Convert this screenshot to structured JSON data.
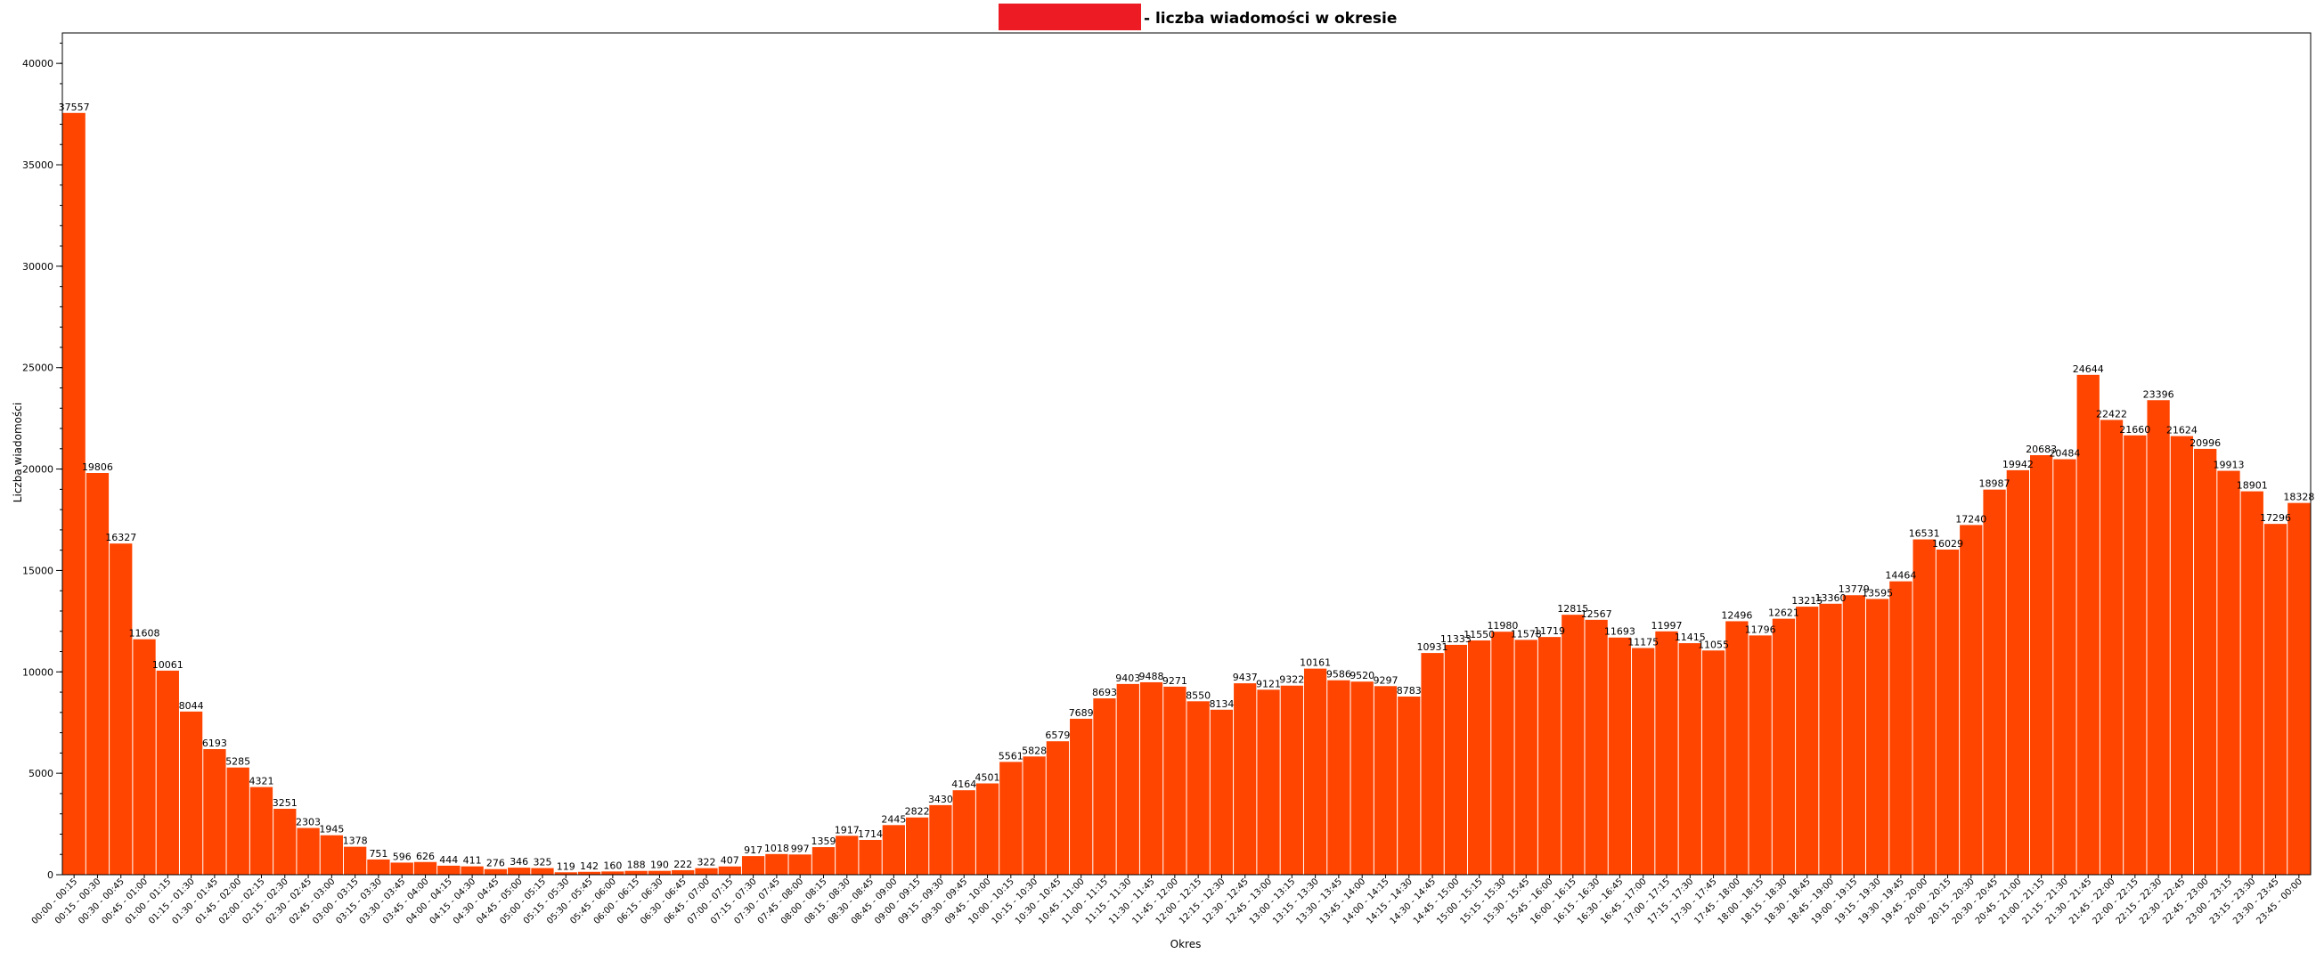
{
  "chart_data": {
    "type": "bar",
    "title": "- liczba wiadomości w okresie",
    "legend_swatch_color": "#ed1c24",
    "bar_color": "#ff4500",
    "xlabel": "Okres",
    "ylabel": "Liczba wiadomości",
    "ylim": [
      0,
      41500
    ],
    "yticks": [
      0,
      5000,
      10000,
      15000,
      20000,
      25000,
      30000,
      35000,
      40000
    ],
    "grid": false,
    "legend_placement": "top-center",
    "categories": [
      "00:00 - 00:15",
      "00:15 - 00:30",
      "00:30 - 00:45",
      "00:45 - 01:00",
      "01:00 - 01:15",
      "01:15 - 01:30",
      "01:30 - 01:45",
      "01:45 - 02:00",
      "02:00 - 02:15",
      "02:15 - 02:30",
      "02:30 - 02:45",
      "02:45 - 03:00",
      "03:00 - 03:15",
      "03:15 - 03:30",
      "03:30 - 03:45",
      "03:45 - 04:00",
      "04:00 - 04:15",
      "04:15 - 04:30",
      "04:30 - 04:45",
      "04:45 - 05:00",
      "05:00 - 05:15",
      "05:15 - 05:30",
      "05:30 - 05:45",
      "05:45 - 06:00",
      "06:00 - 06:15",
      "06:15 - 06:30",
      "06:30 - 06:45",
      "06:45 - 07:00",
      "07:00 - 07:15",
      "07:15 - 07:30",
      "07:30 - 07:45",
      "07:45 - 08:00",
      "08:00 - 08:15",
      "08:15 - 08:30",
      "08:30 - 08:45",
      "08:45 - 09:00",
      "09:00 - 09:15",
      "09:15 - 09:30",
      "09:30 - 09:45",
      "09:45 - 10:00",
      "10:00 - 10:15",
      "10:15 - 10:30",
      "10:30 - 10:45",
      "10:45 - 11:00",
      "11:00 - 11:15",
      "11:15 - 11:30",
      "11:30 - 11:45",
      "11:45 - 12:00",
      "12:00 - 12:15",
      "12:15 - 12:30",
      "12:30 - 12:45",
      "12:45 - 13:00",
      "13:00 - 13:15",
      "13:15 - 13:30",
      "13:30 - 13:45",
      "13:45 - 14:00",
      "14:00 - 14:15",
      "14:15 - 14:30",
      "14:30 - 14:45",
      "14:45 - 15:00",
      "15:00 - 15:15",
      "15:15 - 15:30",
      "15:30 - 15:45",
      "15:45 - 16:00",
      "16:00 - 16:15",
      "16:15 - 16:30",
      "16:30 - 16:45",
      "16:45 - 17:00",
      "17:00 - 17:15",
      "17:15 - 17:30",
      "17:30 - 17:45",
      "17:45 - 18:00",
      "18:00 - 18:15",
      "18:15 - 18:30",
      "18:30 - 18:45",
      "18:45 - 19:00",
      "19:00 - 19:15",
      "19:15 - 19:30",
      "19:30 - 19:45",
      "19:45 - 20:00",
      "20:00 - 20:15",
      "20:15 - 20:30",
      "20:30 - 20:45",
      "20:45 - 21:00",
      "21:00 - 21:15",
      "21:15 - 21:30",
      "21:30 - 21:45",
      "21:45 - 22:00",
      "22:00 - 22:15",
      "22:15 - 22:30",
      "22:30 - 22:45",
      "22:45 - 23:00",
      "23:00 - 23:15",
      "23:15 - 23:30",
      "23:30 - 23:45",
      "23:45 - 00:00"
    ],
    "values": [
      37557,
      19806,
      16327,
      11608,
      10061,
      8044,
      6193,
      5285,
      4321,
      3251,
      2303,
      1945,
      1378,
      751,
      596,
      626,
      444,
      411,
      276,
      346,
      325,
      119,
      142,
      160,
      188,
      190,
      222,
      322,
      407,
      917,
      1018,
      997,
      1359,
      1917,
      1714,
      2445,
      2822,
      3430,
      4164,
      4501,
      5561,
      5828,
      6579,
      7689,
      8693,
      9403,
      9488,
      9271,
      8550,
      8134,
      9437,
      9121,
      9322,
      10161,
      9586,
      9520,
      9297,
      8783,
      10931,
      11333,
      11550,
      11980,
      11578,
      11719,
      12815,
      12567,
      11693,
      11175,
      11997,
      11415,
      11055,
      12496,
      11796,
      12621,
      13215,
      13360,
      13779,
      13595,
      14464,
      16531,
      16029,
      17240,
      18987,
      19942,
      20683,
      20484,
      24644,
      22422,
      21660,
      23396,
      21624,
      20996,
      19913,
      18901,
      17296,
      18328
    ]
  }
}
